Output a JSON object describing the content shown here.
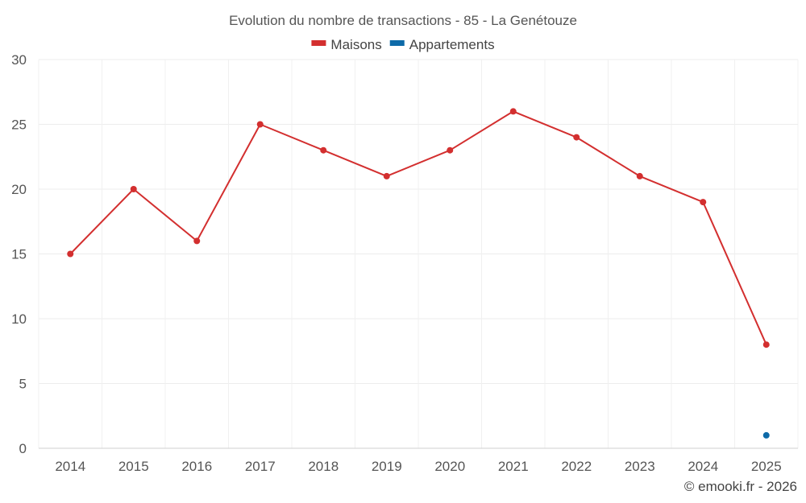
{
  "chart_data": {
    "type": "line",
    "title": "Evolution du nombre de transactions - 85 - La Genétouze",
    "xlabel": "",
    "ylabel": "",
    "categories": [
      "2014",
      "2015",
      "2016",
      "2017",
      "2018",
      "2019",
      "2020",
      "2021",
      "2022",
      "2023",
      "2024",
      "2025"
    ],
    "ylim": [
      0,
      30
    ],
    "yticks": [
      0,
      5,
      10,
      15,
      20,
      25,
      30
    ],
    "grid": true,
    "legend_position": "top-center",
    "series": [
      {
        "name": "Maisons",
        "color": "#d32f2f",
        "values": [
          15,
          20,
          16,
          25,
          23,
          21,
          23,
          26,
          24,
          21,
          19,
          8
        ]
      },
      {
        "name": "Appartements",
        "color": "#0d6aa8",
        "values": [
          null,
          null,
          null,
          null,
          null,
          null,
          null,
          null,
          null,
          null,
          null,
          1
        ]
      }
    ]
  },
  "credit": "© emooki.fr - 2026"
}
